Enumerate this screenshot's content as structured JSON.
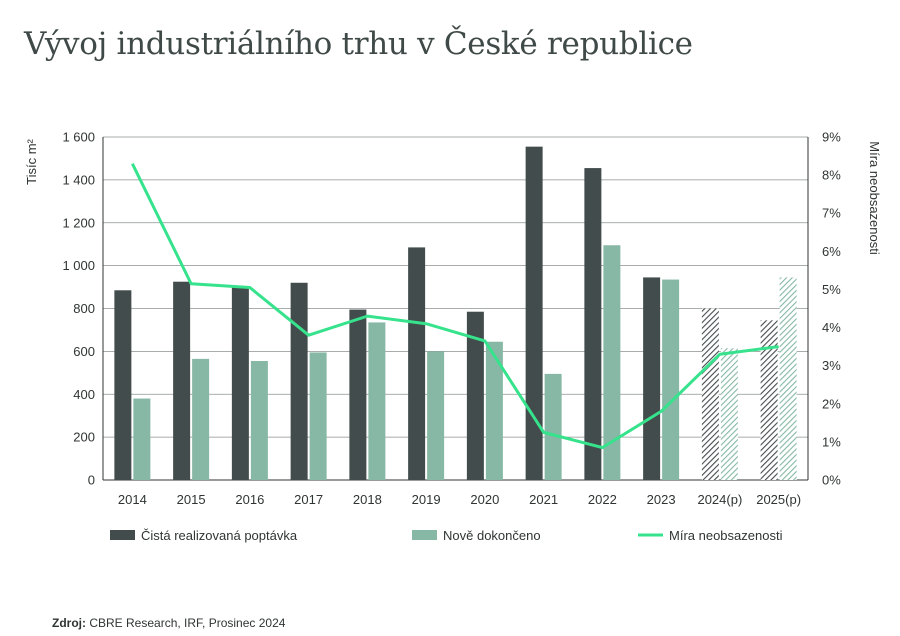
{
  "title": "Vývoj industriálního trhu v České republice",
  "source": {
    "label": "Zdroj:",
    "text": "CBRE Research, IRF, Prosinec 2024"
  },
  "colors": {
    "realized": "#434c4c",
    "completed": "#86b8a5",
    "vacancy": "#36e38c",
    "grid": "#8c9290"
  },
  "chart_data": {
    "type": "bar",
    "categories": [
      "2014",
      "2015",
      "2016",
      "2017",
      "2018",
      "2019",
      "2020",
      "2021",
      "2022",
      "2023",
      "2024(p)",
      "2025(p)"
    ],
    "projected_from_index": 10,
    "ylabel": "Tisíc m²",
    "ylabel_right": "Míra neobsazenosti",
    "ylim": [
      0,
      1600
    ],
    "yticks": [
      0,
      200,
      400,
      600,
      800,
      1000,
      1200,
      1400,
      1600
    ],
    "ytick_labels": [
      "0",
      "200",
      "400",
      "600",
      "800",
      "1 000",
      "1 200",
      "1 400",
      "1 600"
    ],
    "ylim_right": [
      0,
      9
    ],
    "yticks_right": [
      0,
      1,
      2,
      3,
      4,
      5,
      6,
      7,
      8,
      9
    ],
    "ytick_labels_right": [
      "0%",
      "1%",
      "2%",
      "3%",
      "4%",
      "5%",
      "6%",
      "7%",
      "8%",
      "9%"
    ],
    "grid": true,
    "legend_position": "bottom",
    "series": [
      {
        "name": "Čistá realizovaná poptávka",
        "type": "bar",
        "axis": "left",
        "values": [
          885,
          925,
          900,
          920,
          795,
          1085,
          785,
          1555,
          1455,
          945,
          800,
          745
        ]
      },
      {
        "name": "Nově dokončeno",
        "type": "bar",
        "axis": "left",
        "values": [
          380,
          565,
          555,
          595,
          735,
          600,
          645,
          495,
          1095,
          935,
          615,
          945
        ]
      },
      {
        "name": "Míra neobsazenosti",
        "type": "line",
        "axis": "right",
        "values": [
          8.3,
          5.15,
          5.05,
          3.8,
          4.3,
          4.1,
          3.65,
          1.25,
          0.85,
          1.8,
          3.3,
          3.5
        ]
      }
    ]
  }
}
